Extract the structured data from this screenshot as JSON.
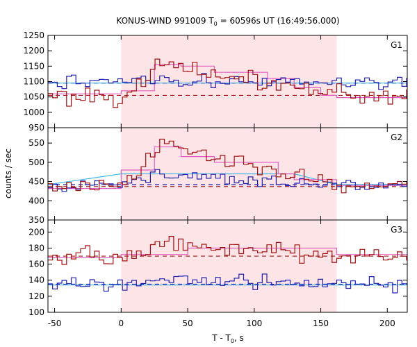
{
  "chart_data": {
    "type": "line",
    "title": "KONUS-WIND 991009 T",
    "title_sub": "0",
    "title_rest": " = 60596s UT (16:49:56.000)",
    "xlabel": "T - T",
    "xlabel_sub": "0",
    "xlabel_rest": ", s",
    "ylabel": "counts / sec",
    "xlim": [
      -55,
      215
    ],
    "x_ticks": [
      -50,
      0,
      50,
      100,
      150,
      200
    ],
    "shaded_interval": [
      0,
      162
    ],
    "grid": false,
    "colors": {
      "series_red": "#a01010",
      "series_blue": "#2020b0",
      "fit_pink": "#e060c0",
      "fit_cyan": "#40b8e8",
      "shade": "#fde4e6"
    },
    "panels": [
      {
        "name": "G1",
        "ylim": [
          950,
          1250
        ],
        "y_ticks": [
          950,
          1000,
          1050,
          1100,
          1150,
          1200,
          1250
        ],
        "red": {
          "baseline": 1055,
          "peak": 1150,
          "noise": 22,
          "start": 1060
        },
        "blue": {
          "baseline": 1095,
          "peak": 1100,
          "noise": 16,
          "start": 1080
        },
        "red_level": 1055,
        "blue_level": 1095,
        "red_fit": [
          [
            -55,
            1060
          ],
          [
            0,
            1070
          ],
          [
            25,
            1155
          ],
          [
            45,
            1150
          ],
          [
            70,
            1130
          ],
          [
            110,
            1110
          ],
          [
            130,
            1080
          ],
          [
            150,
            1055
          ],
          [
            162,
            1048
          ],
          [
            215,
            1048
          ]
        ],
        "blue_fit": [
          [
            -55,
            1095
          ],
          [
            215,
            1095
          ]
        ]
      },
      {
        "name": "G2",
        "ylim": [
          350,
          590
        ],
        "y_ticks": [
          350,
          400,
          450,
          500,
          550
        ],
        "red": {
          "baseline": 437,
          "peak": 545,
          "noise": 14,
          "start": 430
        },
        "blue": {
          "baseline": 440,
          "peak": 470,
          "noise": 10,
          "start": 438
        },
        "red_level": 437,
        "blue_level": 442,
        "red_fit": [
          [
            -55,
            432
          ],
          [
            0,
            480
          ],
          [
            25,
            540
          ],
          [
            45,
            515
          ],
          [
            70,
            500
          ],
          [
            100,
            500
          ],
          [
            118,
            470
          ],
          [
            130,
            455
          ],
          [
            162,
            440
          ],
          [
            215,
            440
          ]
        ],
        "blue_fit": [
          [
            -55,
            442
          ],
          [
            0,
            470
          ],
          [
            130,
            470
          ],
          [
            162,
            442
          ],
          [
            215,
            442
          ]
        ]
      },
      {
        "name": "G3",
        "ylim": [
          100,
          215
        ],
        "y_ticks": [
          100,
          120,
          140,
          160,
          180,
          200
        ],
        "red": {
          "baseline": 170,
          "peak": 185,
          "noise": 8,
          "start": 165
        },
        "blue": {
          "baseline": 135,
          "peak": 140,
          "noise": 6,
          "start": 135
        },
        "red_level": 170,
        "blue_level": 135,
        "red_fit": [
          [
            -55,
            168
          ],
          [
            0,
            172
          ],
          [
            50,
            180
          ],
          [
            100,
            180
          ],
          [
            162,
            172
          ],
          [
            215,
            172
          ]
        ],
        "blue_fit": [
          [
            -55,
            134
          ],
          [
            215,
            134
          ]
        ]
      }
    ]
  }
}
